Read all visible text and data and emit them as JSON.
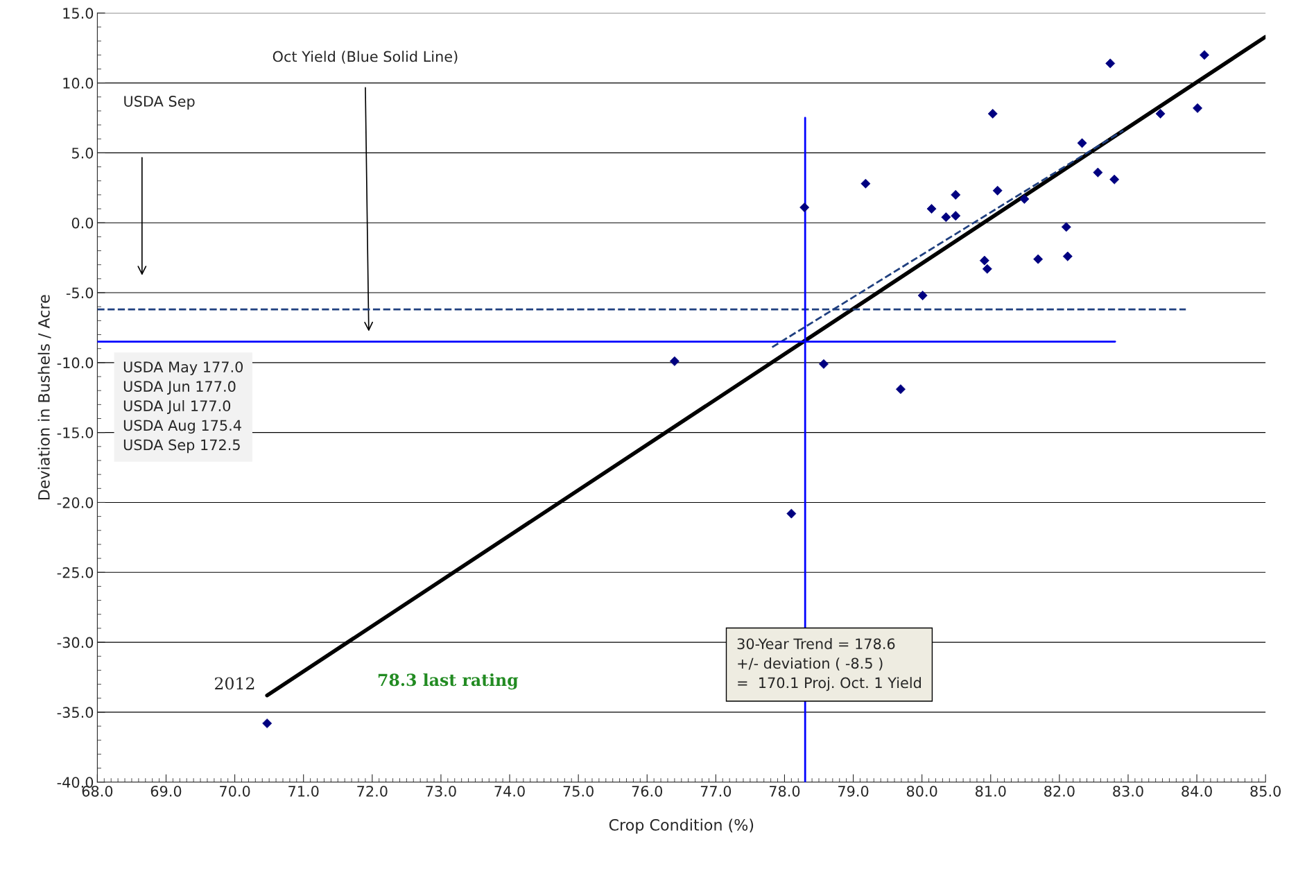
{
  "chart_data": {
    "type": "scatter",
    "xlabel": "Crop Condition (%)",
    "ylabel": "Deviation in Bushels / Acre",
    "xlim": [
      68,
      85
    ],
    "ylim": [
      -40,
      15
    ],
    "xticks": [
      {
        "value": 68,
        "label": "68.0"
      },
      {
        "value": 69,
        "label": "69.0"
      },
      {
        "value": 70,
        "label": "70.0"
      },
      {
        "value": 71,
        "label": "71.0"
      },
      {
        "value": 72,
        "label": "72.0"
      },
      {
        "value": 73,
        "label": "73.0"
      },
      {
        "value": 74,
        "label": "74.0"
      },
      {
        "value": 75,
        "label": "75.0"
      },
      {
        "value": 76,
        "label": "76.0"
      },
      {
        "value": 77,
        "label": "77.0"
      },
      {
        "value": 78,
        "label": "78.0"
      },
      {
        "value": 79,
        "label": "79.0"
      },
      {
        "value": 80,
        "label": "80.0"
      },
      {
        "value": 81,
        "label": "81.0"
      },
      {
        "value": 82,
        "label": "82.0"
      },
      {
        "value": 83,
        "label": "83.0"
      },
      {
        "value": 84,
        "label": "84.0"
      },
      {
        "value": 85,
        "label": "85.0"
      }
    ],
    "yticks": [
      {
        "value": -40,
        "label": "-40.0"
      },
      {
        "value": -35,
        "label": "-35.0"
      },
      {
        "value": -30,
        "label": "-30.0"
      },
      {
        "value": -25,
        "label": "-25.0"
      },
      {
        "value": -20,
        "label": "-20.0"
      },
      {
        "value": -15,
        "label": "-15.0"
      },
      {
        "value": -10,
        "label": "-10.0"
      },
      {
        "value": -5,
        "label": "-5.0"
      },
      {
        "value": 0,
        "label": "0.0"
      },
      {
        "value": 5,
        "label": "5.0"
      },
      {
        "value": 10,
        "label": "10.0"
      },
      {
        "value": 15,
        "label": "15.0"
      }
    ],
    "grid": "y",
    "legend": false,
    "series": [
      {
        "marker": "diamond",
        "color": "#000080",
        "x": [
          70.47,
          76.4,
          78.1,
          78.29,
          78.57,
          79.18,
          79.69,
          80.01,
          80.14,
          80.35,
          80.49,
          80.49,
          80.91,
          80.95,
          81.03,
          81.1,
          81.49,
          81.69,
          82.1,
          82.12,
          82.33,
          82.56,
          82.74,
          82.8,
          83.47,
          84.01,
          84.11
        ],
        "values": [
          -35.8,
          -9.9,
          -20.8,
          1.1,
          -10.1,
          2.8,
          -11.9,
          -5.2,
          1.0,
          0.4,
          2.0,
          0.5,
          -2.7,
          -3.3,
          7.8,
          2.3,
          1.7,
          -2.6,
          -0.3,
          -2.4,
          5.7,
          3.6,
          11.4,
          3.1,
          7.8,
          8.2,
          12.0
        ]
      },
      {
        "type": "line",
        "line_style": "solid",
        "color": "#000000",
        "x": [
          70.47,
          85
        ],
        "values": [
          -33.8,
          13.3
        ]
      },
      {
        "type": "line",
        "line_style": "dashed",
        "color": "#1f3f7f",
        "x": [
          77.82,
          82.93
        ],
        "values": [
          -8.9,
          6.6
        ]
      },
      {
        "type": "line",
        "line_style": "dashed",
        "color": "#1f3f7f",
        "x": [
          68,
          83.84
        ],
        "values": [
          -6.2,
          -6.2
        ]
      },
      {
        "type": "line",
        "line_style": "solid",
        "color": "#0000ff",
        "x": [
          68,
          82.81
        ],
        "values": [
          -8.5,
          -8.5
        ]
      },
      {
        "type": "line",
        "line_style": "solid",
        "color": "#0000ff",
        "x": [
          78.3,
          78.3
        ],
        "values": [
          7.5,
          -40
        ]
      }
    ],
    "annotations": [
      "Oct Yield (Blue Solid Line)",
      "USDA Sep",
      "USDA May 177.0\nUSDA Jun 177.0\nUSDA Jul 177.0\nUSDA Aug 175.4\nUSDA Sep 172.5",
      "30-Year Trend = 178.6\n+/- deviation ( -8.5 )\n=  170.1 Proj. Oct. 1 Yield",
      {
        "text": "2012",
        "x": 70.47,
        "y": -35.8
      },
      "78.3 last rating"
    ]
  }
}
